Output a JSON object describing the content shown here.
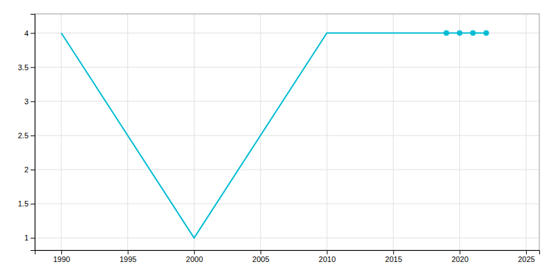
{
  "chart_data": {
    "type": "line",
    "x": [
      1990,
      2000,
      2010,
      2019,
      2020,
      2021,
      2022
    ],
    "series": [
      {
        "type": "line",
        "color": "#00BCD4",
        "values": [
          4,
          1,
          4,
          4,
          4,
          4,
          4
        ]
      },
      {
        "type": "scatter",
        "marker": "circle",
        "color": "#00BCD4",
        "values": [
          null,
          null,
          null,
          4,
          4,
          4,
          4
        ]
      }
    ],
    "xlim": [
      1988,
      2026
    ],
    "ylim": [
      0.82,
      4.28
    ],
    "xticks": [
      1990,
      1995,
      2000,
      2005,
      2010,
      2015,
      2020,
      2025
    ],
    "yticks": [
      1,
      1.5,
      2,
      2.5,
      3,
      3.5,
      4
    ],
    "grid": true
  }
}
